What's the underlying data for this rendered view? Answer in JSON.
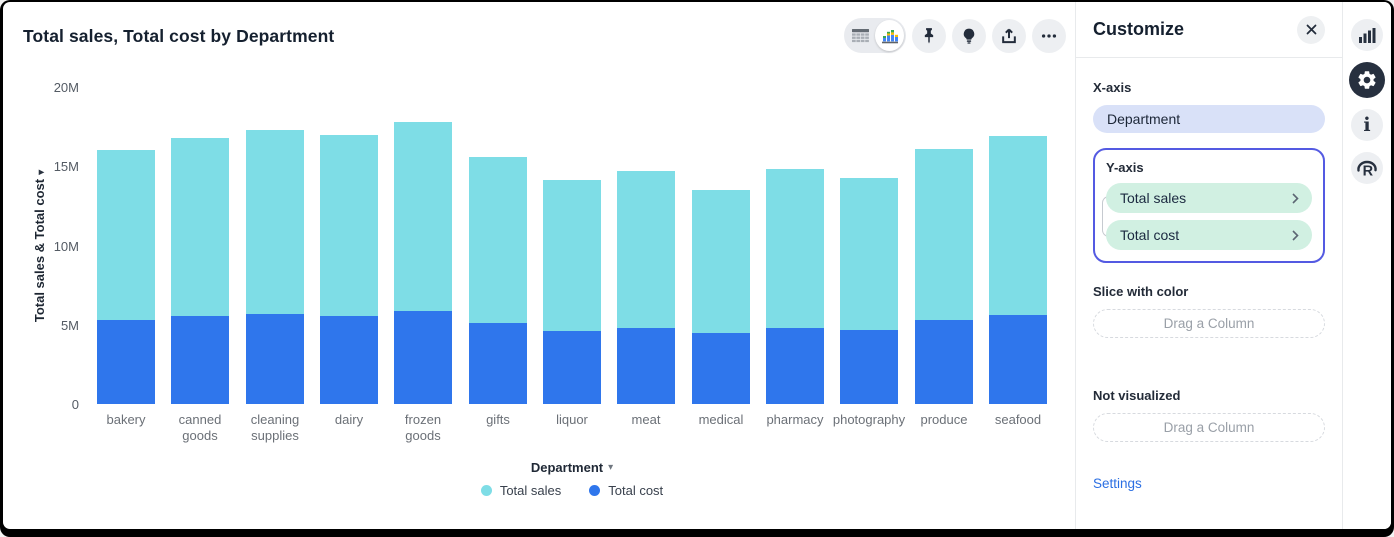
{
  "chart_data": {
    "type": "bar",
    "stacked": true,
    "title": "Total sales, Total cost by Department",
    "xlabel": "Department",
    "ylabel": "Total sales & Total cost",
    "categories": [
      "bakery",
      "canned goods",
      "cleaning supplies",
      "dairy",
      "frozen goods",
      "gifts",
      "liquor",
      "meat",
      "medical",
      "pharmacy",
      "photography",
      "produce",
      "seafood"
    ],
    "series": [
      {
        "name": "Total cost",
        "color": "#2f76ec",
        "values_millions": [
          5.3,
          5.55,
          5.7,
          5.55,
          5.85,
          5.1,
          4.6,
          4.8,
          4.5,
          4.8,
          4.7,
          5.3,
          5.6
        ]
      },
      {
        "name": "Total sales",
        "color": "#7edde6",
        "values_millions": [
          10.7,
          11.25,
          11.6,
          11.45,
          11.95,
          10.5,
          9.5,
          9.9,
          9.0,
          10.0,
          9.6,
          10.8,
          11.3
        ]
      }
    ],
    "ylim_millions": [
      0,
      20
    ],
    "y_ticks": [
      {
        "value_millions": 0,
        "label": "0"
      },
      {
        "value_millions": 5,
        "label": "5M"
      },
      {
        "value_millions": 10,
        "label": "10M"
      },
      {
        "value_millions": 15,
        "label": "15M"
      },
      {
        "value_millions": 20,
        "label": "20M"
      }
    ],
    "grid": false,
    "legend_position": "bottom",
    "legend": [
      {
        "label": "Total sales",
        "color": "#7edde6"
      },
      {
        "label": "Total cost",
        "color": "#2f76ec"
      }
    ]
  },
  "customize": {
    "title": "Customize",
    "x_axis": {
      "label": "X-axis",
      "value": "Department"
    },
    "y_axis": {
      "label": "Y-axis",
      "values": [
        "Total sales",
        "Total cost"
      ]
    },
    "slice_with_color": {
      "label": "Slice with color",
      "placeholder": "Drag a Column"
    },
    "not_visualized": {
      "label": "Not visualized",
      "placeholder": "Drag a Column"
    },
    "settings_label": "Settings"
  },
  "icons": {
    "close": "✕",
    "caret_down": "▾",
    "info": "i"
  }
}
